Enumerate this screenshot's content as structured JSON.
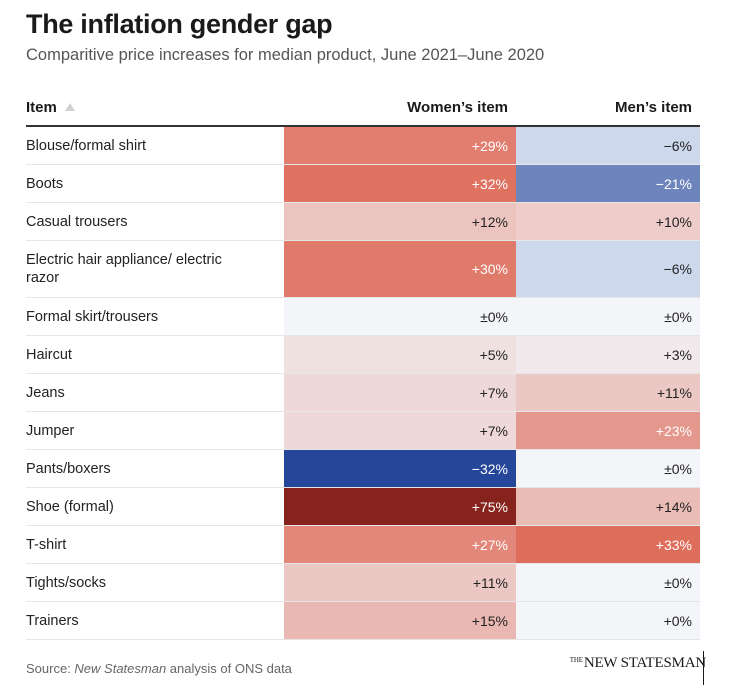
{
  "title": "The inflation gender gap",
  "subtitle": "Comparitive price increases for median product, June 2021–June 2020",
  "chart_data": {
    "type": "table",
    "columns": [
      "Item",
      "Women’s item",
      "Men’s item"
    ],
    "sort_icon": "sort-ascending-triangle-icon",
    "colors": {
      "neutral": "#f3f5f9",
      "red_max": "#86231c",
      "blue_max": "#26469a",
      "text_light": "#ffffff",
      "text_dark": "#222222"
    },
    "rows": [
      {
        "item": "Blouse/formal shirt",
        "women": 29,
        "men": -6,
        "women_label": "+29%",
        "men_label": "−6%"
      },
      {
        "item": "Boots",
        "women": 32,
        "men": -21,
        "women_label": "+32%",
        "men_label": "−21%"
      },
      {
        "item": "Casual trousers",
        "women": 12,
        "men": 10,
        "women_label": "+12%",
        "men_label": "+10%"
      },
      {
        "item": "Electric hair appliance/ electric razor",
        "women": 30,
        "men": -6,
        "women_label": "+30%",
        "men_label": "−6%"
      },
      {
        "item": "Formal skirt/trousers",
        "women": 0,
        "men": 0,
        "women_label": "±0%",
        "men_label": "±0%"
      },
      {
        "item": "Haircut",
        "women": 5,
        "men": 3,
        "women_label": "+5%",
        "men_label": "+3%"
      },
      {
        "item": "Jeans",
        "women": 7,
        "men": 11,
        "women_label": "+7%",
        "men_label": "+11%"
      },
      {
        "item": "Jumper",
        "women": 7,
        "men": 23,
        "women_label": "+7%",
        "men_label": "+23%"
      },
      {
        "item": "Pants/boxers",
        "women": -32,
        "men": 0,
        "women_label": "−32%",
        "men_label": "±0%"
      },
      {
        "item": "Shoe (formal)",
        "women": 75,
        "men": 14,
        "women_label": "+75%",
        "men_label": "+14%"
      },
      {
        "item": "T-shirt",
        "women": 27,
        "men": 33,
        "women_label": "+27%",
        "men_label": "+33%"
      },
      {
        "item": "Tights/socks",
        "women": 11,
        "men": 0,
        "women_label": "+11%",
        "men_label": "±0%"
      },
      {
        "item": "Trainers",
        "women": 15,
        "men": 0,
        "women_label": "+15%",
        "men_label": "+0%"
      }
    ]
  },
  "footer": {
    "source_prefix": "Source: ",
    "source_italic": "New Statesman",
    "source_suffix": " analysis of ONS data"
  },
  "logo": {
    "the": "THE",
    "name": "NEW STATESMAN"
  }
}
